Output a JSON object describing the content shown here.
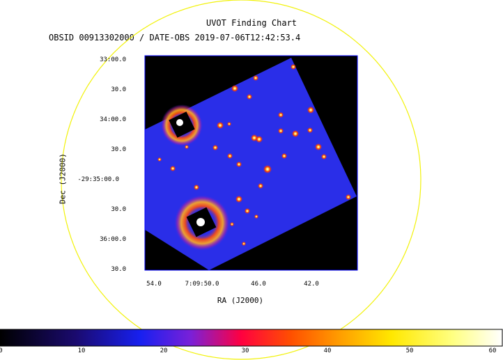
{
  "title": "UVOT Finding Chart",
  "subtitle": "OBSID 00913302000 / DATE-OBS 2019-07-06T12:42:53.4",
  "axes": {
    "y_label": "Dec (J2000)",
    "x_label": "RA (J2000)",
    "y_ticks": [
      "33:00.0",
      "30.0",
      "34:00.0",
      "30.0",
      "-29:35:00.0",
      "30.0",
      "36:00.0",
      "30.0"
    ],
    "x_ticks": [
      "54.0",
      "7:09:50.0",
      "46.0",
      "42.0"
    ]
  },
  "colorbar": {
    "ticks": [
      "0",
      "10",
      "20",
      "30",
      "40",
      "50",
      "60"
    ],
    "min": 0,
    "max": 60
  },
  "colors": {
    "image_background": "#000000",
    "frame_fill": "#2a2ee8",
    "circle": "#f2f20a",
    "source_core": "#ffffff",
    "source_halo": "#ff2a00",
    "axis": "#0000ff"
  }
}
